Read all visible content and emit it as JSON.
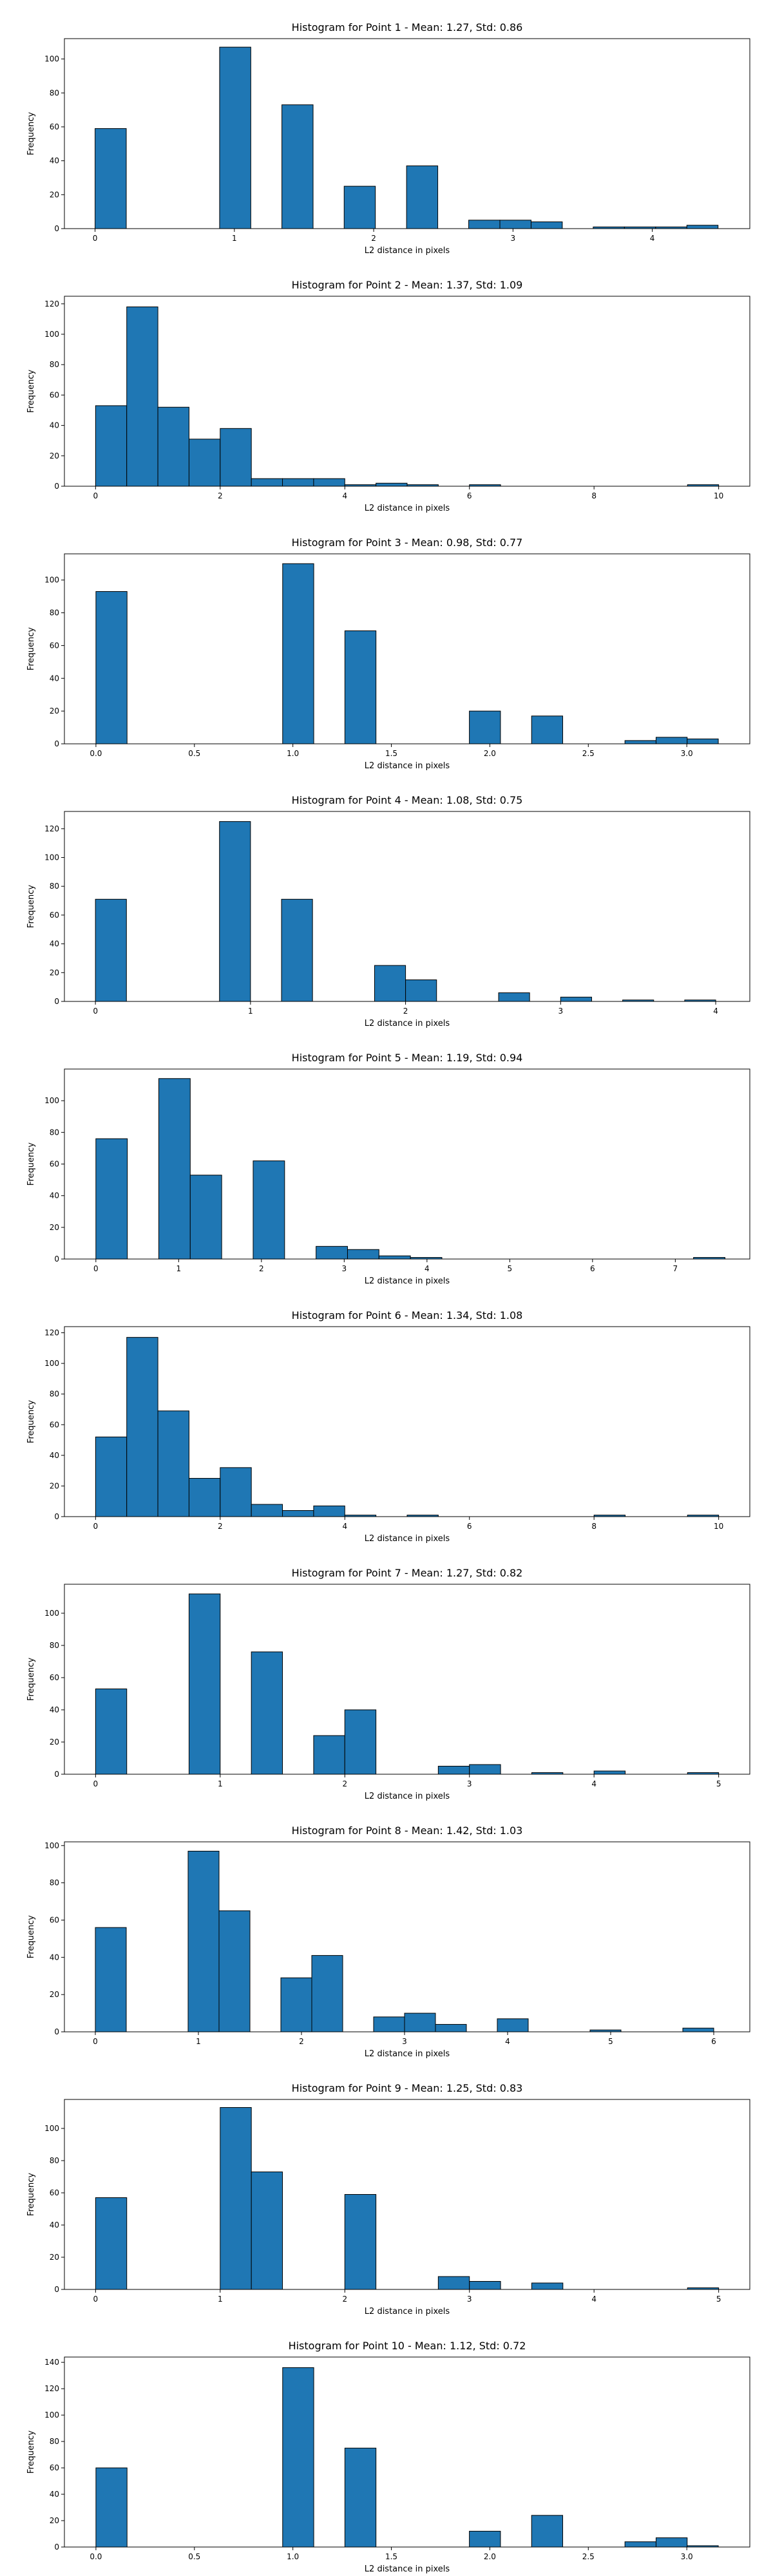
{
  "chart_data": [
    {
      "type": "bar",
      "title": "Histogram for Point 1 - Mean: 1.27, Std: 0.86",
      "xlabel": "L2 distance in pixels",
      "ylabel": "Frequency",
      "xlim": [
        -0.22,
        4.7
      ],
      "ylim": [
        0,
        112
      ],
      "xticks": [
        0,
        1,
        2,
        3,
        4
      ],
      "yticks": [
        0,
        20,
        40,
        60,
        80,
        100
      ],
      "bin_width": 0.224,
      "bins": [
        {
          "x": 0.0,
          "value": 59
        },
        {
          "x": 0.894,
          "value": 107
        },
        {
          "x": 1.341,
          "value": 73
        },
        {
          "x": 1.788,
          "value": 25
        },
        {
          "x": 2.236,
          "value": 37
        },
        {
          "x": 2.682,
          "value": 5
        },
        {
          "x": 2.906,
          "value": 5
        },
        {
          "x": 3.13,
          "value": 4
        },
        {
          "x": 3.576,
          "value": 1
        },
        {
          "x": 3.8,
          "value": 1
        },
        {
          "x": 4.024,
          "value": 1
        },
        {
          "x": 4.248,
          "value": 2
        }
      ]
    },
    {
      "type": "bar",
      "title": "Histogram for Point 2 - Mean: 1.37, Std: 1.09",
      "xlabel": "L2 distance in pixels",
      "ylabel": "Frequency",
      "xlim": [
        -0.5,
        10.5
      ],
      "ylim": [
        0,
        125
      ],
      "xticks": [
        0,
        2,
        4,
        6,
        8,
        10
      ],
      "yticks": [
        0,
        20,
        40,
        60,
        80,
        100,
        120
      ],
      "bin_width": 0.5,
      "bins": [
        {
          "x": 0.0,
          "value": 53
        },
        {
          "x": 0.5,
          "value": 118
        },
        {
          "x": 1.0,
          "value": 52
        },
        {
          "x": 1.5,
          "value": 31
        },
        {
          "x": 2.0,
          "value": 38
        },
        {
          "x": 2.5,
          "value": 5
        },
        {
          "x": 3.0,
          "value": 5
        },
        {
          "x": 3.5,
          "value": 5
        },
        {
          "x": 4.0,
          "value": 1
        },
        {
          "x": 4.5,
          "value": 2
        },
        {
          "x": 5.0,
          "value": 1
        },
        {
          "x": 6.0,
          "value": 1
        },
        {
          "x": 9.5,
          "value": 1
        }
      ]
    },
    {
      "type": "bar",
      "title": "Histogram for Point 3 - Mean: 0.98, Std: 0.77",
      "xlabel": "L2 distance in pixels",
      "ylabel": "Frequency",
      "xlim": [
        -0.16,
        3.32
      ],
      "ylim": [
        0,
        116
      ],
      "xticks": [
        0.0,
        0.5,
        1.0,
        1.5,
        2.0,
        2.5,
        3.0
      ],
      "tick_labels": [
        "0.0",
        "0.5",
        "1.0",
        "1.5",
        "2.0",
        "2.5",
        "3.0"
      ],
      "yticks": [
        0,
        20,
        40,
        60,
        80,
        100
      ],
      "bin_width": 0.158,
      "bins": [
        {
          "x": 0.0,
          "value": 93
        },
        {
          "x": 0.948,
          "value": 110
        },
        {
          "x": 1.264,
          "value": 69
        },
        {
          "x": 1.896,
          "value": 20
        },
        {
          "x": 2.212,
          "value": 17
        },
        {
          "x": 2.686,
          "value": 2
        },
        {
          "x": 2.844,
          "value": 4
        },
        {
          "x": 3.002,
          "value": 3
        }
      ]
    },
    {
      "type": "bar",
      "title": "Histogram for Point 4 - Mean: 1.08, Std: 0.75",
      "xlabel": "L2 distance in pixels",
      "ylabel": "Frequency",
      "xlim": [
        -0.2,
        4.22
      ],
      "ylim": [
        0,
        132
      ],
      "xticks": [
        0,
        1,
        2,
        3,
        4
      ],
      "yticks": [
        0,
        20,
        40,
        60,
        80,
        100,
        120
      ],
      "bin_width": 0.2,
      "bins": [
        {
          "x": 0.0,
          "value": 71
        },
        {
          "x": 0.8,
          "value": 125
        },
        {
          "x": 1.2,
          "value": 71
        },
        {
          "x": 1.8,
          "value": 25
        },
        {
          "x": 2.0,
          "value": 15
        },
        {
          "x": 2.6,
          "value": 6
        },
        {
          "x": 3.0,
          "value": 3
        },
        {
          "x": 3.4,
          "value": 1
        },
        {
          "x": 3.8,
          "value": 1
        }
      ]
    },
    {
      "type": "bar",
      "title": "Histogram for Point 5 - Mean: 1.19, Std: 0.94",
      "xlabel": "L2 distance in pixels",
      "ylabel": "Frequency",
      "xlim": [
        -0.38,
        7.9
      ],
      "ylim": [
        0,
        120
      ],
      "xticks": [
        0,
        1,
        2,
        3,
        4,
        5,
        6,
        7
      ],
      "yticks": [
        0,
        20,
        40,
        60,
        80,
        100
      ],
      "bin_width": 0.38,
      "bins": [
        {
          "x": 0.0,
          "value": 76
        },
        {
          "x": 0.76,
          "value": 114
        },
        {
          "x": 1.14,
          "value": 53
        },
        {
          "x": 1.9,
          "value": 62
        },
        {
          "x": 2.66,
          "value": 8
        },
        {
          "x": 3.04,
          "value": 6
        },
        {
          "x": 3.42,
          "value": 2
        },
        {
          "x": 3.8,
          "value": 1
        },
        {
          "x": 7.22,
          "value": 1
        }
      ]
    },
    {
      "type": "bar",
      "title": "Histogram for Point 6 - Mean: 1.34, Std: 1.08",
      "xlabel": "L2 distance in pixels",
      "ylabel": "Frequency",
      "xlim": [
        -0.5,
        10.5
      ],
      "ylim": [
        0,
        124
      ],
      "xticks": [
        0,
        2,
        4,
        6,
        8,
        10
      ],
      "yticks": [
        0,
        20,
        40,
        60,
        80,
        100,
        120
      ],
      "bin_width": 0.5,
      "bins": [
        {
          "x": 0.0,
          "value": 52
        },
        {
          "x": 0.5,
          "value": 117
        },
        {
          "x": 1.0,
          "value": 69
        },
        {
          "x": 1.5,
          "value": 25
        },
        {
          "x": 2.0,
          "value": 32
        },
        {
          "x": 2.5,
          "value": 8
        },
        {
          "x": 3.0,
          "value": 4
        },
        {
          "x": 3.5,
          "value": 7
        },
        {
          "x": 4.0,
          "value": 1
        },
        {
          "x": 5.0,
          "value": 1
        },
        {
          "x": 8.0,
          "value": 1
        },
        {
          "x": 9.5,
          "value": 1
        }
      ]
    },
    {
      "type": "bar",
      "title": "Histogram for Point 7 - Mean: 1.27, Std: 0.82",
      "xlabel": "L2 distance in pixels",
      "ylabel": "Frequency",
      "xlim": [
        -0.25,
        5.25
      ],
      "ylim": [
        0,
        118
      ],
      "xticks": [
        0,
        1,
        2,
        3,
        4,
        5
      ],
      "yticks": [
        0,
        20,
        40,
        60,
        80,
        100
      ],
      "bin_width": 0.25,
      "bins": [
        {
          "x": 0.0,
          "value": 53
        },
        {
          "x": 0.75,
          "value": 112
        },
        {
          "x": 1.25,
          "value": 76
        },
        {
          "x": 1.75,
          "value": 24
        },
        {
          "x": 2.0,
          "value": 40
        },
        {
          "x": 2.75,
          "value": 5
        },
        {
          "x": 3.0,
          "value": 6
        },
        {
          "x": 3.5,
          "value": 1
        },
        {
          "x": 4.0,
          "value": 2
        },
        {
          "x": 4.75,
          "value": 1
        }
      ]
    },
    {
      "type": "bar",
      "title": "Histogram for Point 8 - Mean: 1.42, Std: 1.03",
      "xlabel": "L2 distance in pixels",
      "ylabel": "Frequency",
      "xlim": [
        -0.3,
        6.35
      ],
      "ylim": [
        0,
        102
      ],
      "xticks": [
        0,
        1,
        2,
        3,
        4,
        5,
        6
      ],
      "yticks": [
        0,
        20,
        40,
        60,
        80,
        100
      ],
      "bin_width": 0.3,
      "bins": [
        {
          "x": 0.0,
          "value": 56
        },
        {
          "x": 0.9,
          "value": 97
        },
        {
          "x": 1.2,
          "value": 65
        },
        {
          "x": 1.8,
          "value": 29
        },
        {
          "x": 2.1,
          "value": 41
        },
        {
          "x": 2.7,
          "value": 8
        },
        {
          "x": 3.0,
          "value": 10
        },
        {
          "x": 3.3,
          "value": 4
        },
        {
          "x": 3.9,
          "value": 7
        },
        {
          "x": 4.8,
          "value": 1
        },
        {
          "x": 5.7,
          "value": 2
        }
      ]
    },
    {
      "type": "bar",
      "title": "Histogram for Point 9 - Mean: 1.25, Std: 0.83",
      "xlabel": "L2 distance in pixels",
      "ylabel": "Frequency",
      "xlim": [
        -0.25,
        5.25
      ],
      "ylim": [
        0,
        118
      ],
      "xticks": [
        0,
        1,
        2,
        3,
        4,
        5
      ],
      "yticks": [
        0,
        20,
        40,
        60,
        80,
        100
      ],
      "bin_width": 0.25,
      "bins": [
        {
          "x": 0.0,
          "value": 57
        },
        {
          "x": 1.0,
          "value": 113
        },
        {
          "x": 1.25,
          "value": 73
        },
        {
          "x": 2.0,
          "value": 59
        },
        {
          "x": 2.75,
          "value": 8
        },
        {
          "x": 3.0,
          "value": 5
        },
        {
          "x": 3.5,
          "value": 4
        },
        {
          "x": 4.75,
          "value": 1
        }
      ]
    },
    {
      "type": "bar",
      "title": "Histogram for Point 10 - Mean: 1.12, Std: 0.72",
      "xlabel": "L2 distance in pixels",
      "ylabel": "Frequency",
      "xlim": [
        -0.16,
        3.32
      ],
      "ylim": [
        0,
        144
      ],
      "xticks": [
        0.0,
        0.5,
        1.0,
        1.5,
        2.0,
        2.5,
        3.0
      ],
      "tick_labels": [
        "0.0",
        "0.5",
        "1.0",
        "1.5",
        "2.0",
        "2.5",
        "3.0"
      ],
      "yticks": [
        0,
        20,
        40,
        60,
        80,
        100,
        120,
        140
      ],
      "bin_width": 0.158,
      "bins": [
        {
          "x": 0.0,
          "value": 60
        },
        {
          "x": 0.948,
          "value": 136
        },
        {
          "x": 1.264,
          "value": 75
        },
        {
          "x": 1.896,
          "value": 12
        },
        {
          "x": 2.212,
          "value": 24
        },
        {
          "x": 2.686,
          "value": 4
        },
        {
          "x": 2.844,
          "value": 7
        },
        {
          "x": 3.002,
          "value": 1
        }
      ]
    }
  ]
}
